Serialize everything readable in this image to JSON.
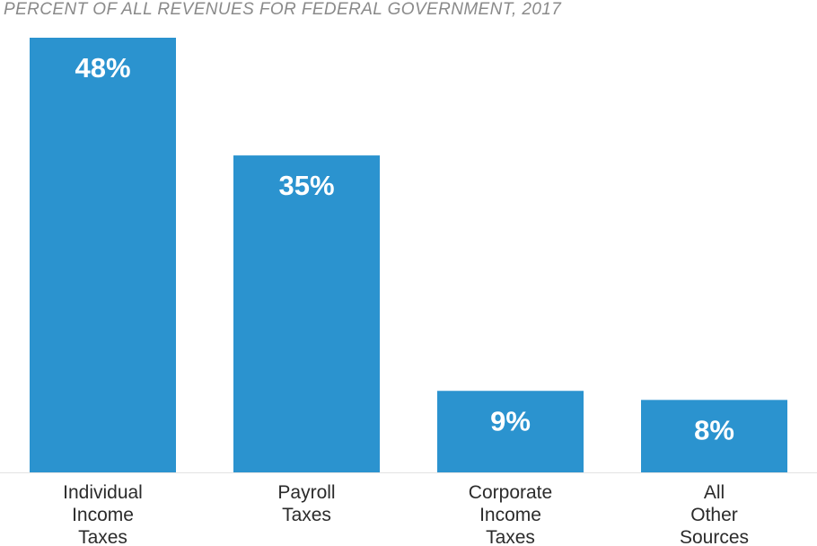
{
  "chart_data": {
    "type": "bar",
    "title": "PERCENT OF ALL REVENUES FOR FEDERAL GOVERNMENT, 2017",
    "categories": [
      [
        "Individual",
        "Income",
        "Taxes"
      ],
      [
        "Payroll",
        "Taxes"
      ],
      [
        "Corporate",
        "Income",
        "Taxes"
      ],
      [
        "All",
        "Other",
        "Sources"
      ]
    ],
    "values": [
      48,
      35,
      9,
      8
    ],
    "value_labels": [
      "48%",
      "35%",
      "9%",
      "8%"
    ],
    "ylim": [
      0,
      48
    ],
    "grid": false,
    "bar_color": "#2b93cf",
    "baseline_color": "#e3e3e3"
  }
}
